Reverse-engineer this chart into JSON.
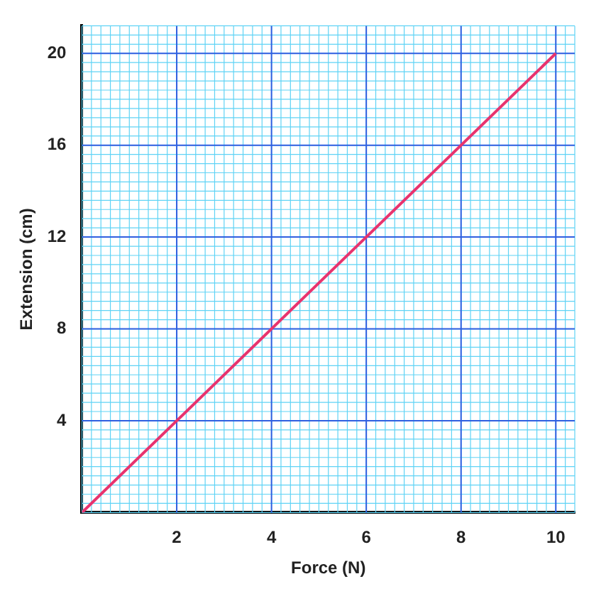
{
  "chart_data": {
    "type": "line",
    "xlabel": "Force (N)",
    "ylabel": "Extension (cm)",
    "x": [
      0,
      10
    ],
    "series": [
      {
        "color": "#e8336e",
        "values": [
          0,
          20
        ]
      }
    ],
    "xlim": [
      0,
      10.4
    ],
    "xticks": [
      2,
      4,
      6,
      8,
      10
    ],
    "ylim": [
      0,
      21.2
    ],
    "yticks": [
      4,
      8,
      12,
      16,
      20
    ],
    "grid": true,
    "marker": "none",
    "line_style": "solid",
    "legend": false
  }
}
